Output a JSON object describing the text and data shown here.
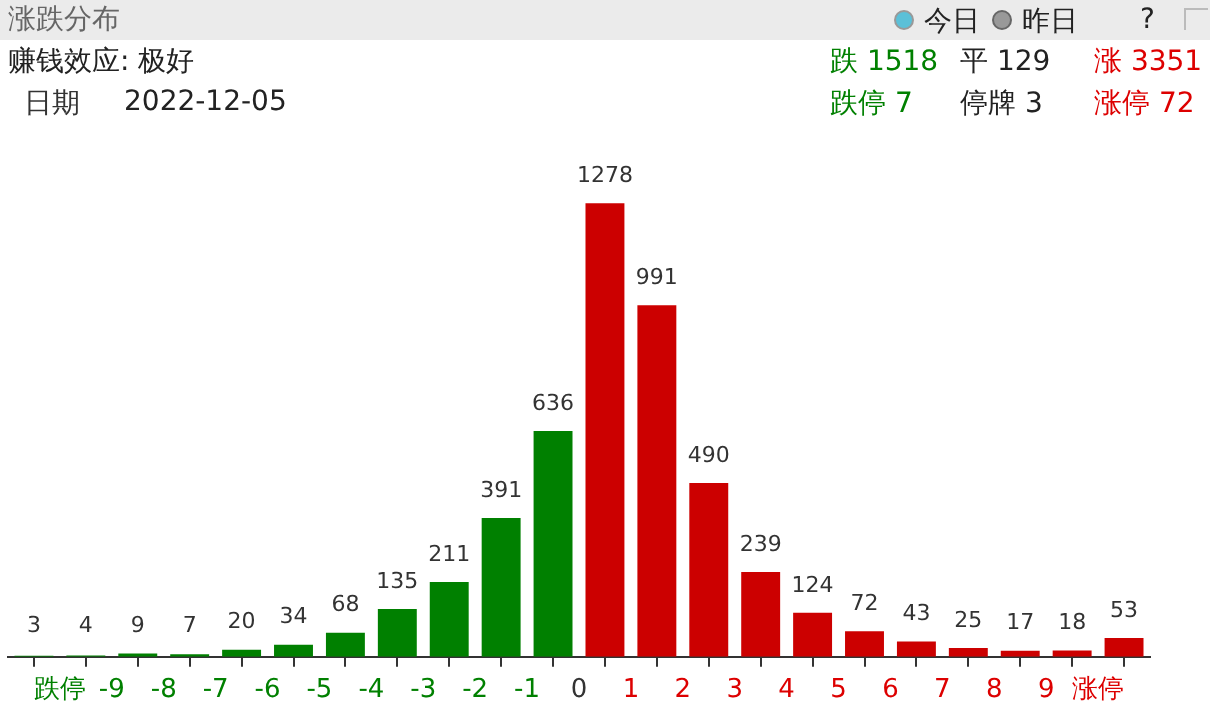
{
  "chart_data": {
    "type": "bar",
    "title": "涨跌分布",
    "x": [
      -10.5,
      -9.5,
      -8.5,
      -7.5,
      -6.5,
      -5.5,
      -4.5,
      -3.5,
      -2.5,
      -1.5,
      -0.5,
      0.5,
      1.5,
      2.5,
      3.5,
      4.5,
      5.5,
      6.5,
      7.5,
      8.5,
      9.5,
      10.5
    ],
    "values": [
      3,
      4,
      9,
      7,
      20,
      34,
      68,
      135,
      211,
      391,
      636,
      1278,
      991,
      490,
      239,
      124,
      72,
      43,
      25,
      17,
      18,
      53
    ],
    "colors": [
      "#008000",
      "#008000",
      "#008000",
      "#008000",
      "#008000",
      "#008000",
      "#008000",
      "#008000",
      "#008000",
      "#008000",
      "#008000",
      "#cc0000",
      "#cc0000",
      "#cc0000",
      "#cc0000",
      "#cc0000",
      "#cc0000",
      "#cc0000",
      "#cc0000",
      "#cc0000",
      "#cc0000",
      "#cc0000"
    ],
    "xlim": [
      -11,
      11
    ],
    "xticks": [
      {
        "value": -10,
        "label": "跌停"
      },
      -9,
      -8,
      -7,
      -6,
      -5,
      -4,
      -3,
      -2,
      -1,
      0,
      1,
      2,
      3,
      4,
      5,
      6,
      7,
      8,
      9,
      {
        "value": 10,
        "label": "涨停"
      }
    ],
    "tick_labels": "x",
    "grid": false,
    "legend": false,
    "data_labels": true,
    "annotations": [
      "今日",
      "昨日",
      "?",
      "赚钱效应: 极好",
      "日期",
      "2022-12-05",
      "跌 1518",
      "平 129",
      "涨 3351",
      "跌停 7",
      "停牌 3",
      "涨停 72"
    ]
  }
}
